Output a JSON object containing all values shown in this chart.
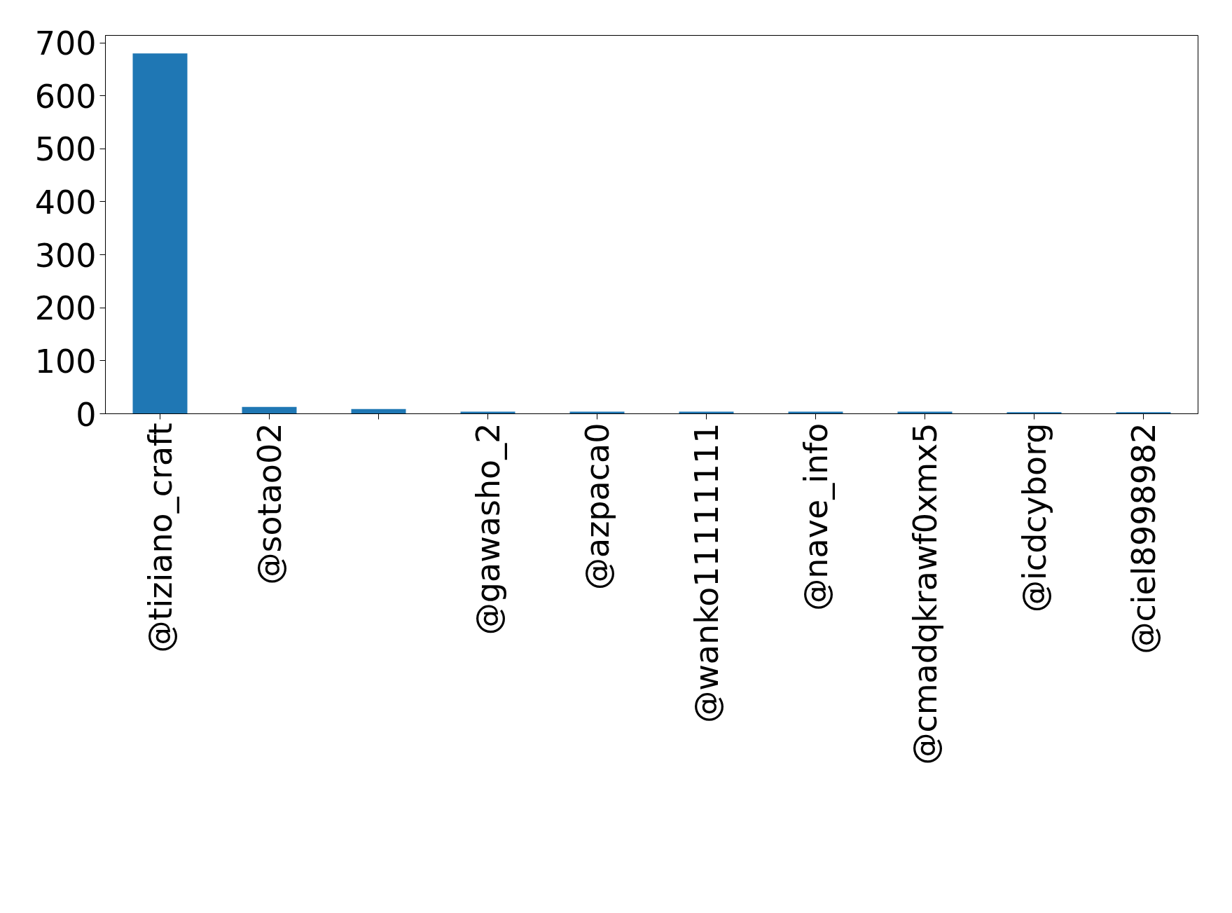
{
  "chart_data": {
    "type": "bar",
    "categories": [
      "@tiziano_craft",
      "@sotao02",
      null,
      "@gawasho_2",
      "@azpaca0",
      "@wanko11111111",
      "@nave_info",
      "@cmadqkrawf0xmx5",
      "@icdcyborg",
      "@ciel8998982"
    ],
    "values": [
      680,
      13,
      9,
      4,
      4,
      4,
      4,
      4,
      3,
      3
    ],
    "color": "#1f77b4",
    "ylim": [
      0,
      714
    ],
    "yticks": [
      0,
      100,
      200,
      300,
      400,
      500,
      600,
      700
    ],
    "grid": false
  }
}
